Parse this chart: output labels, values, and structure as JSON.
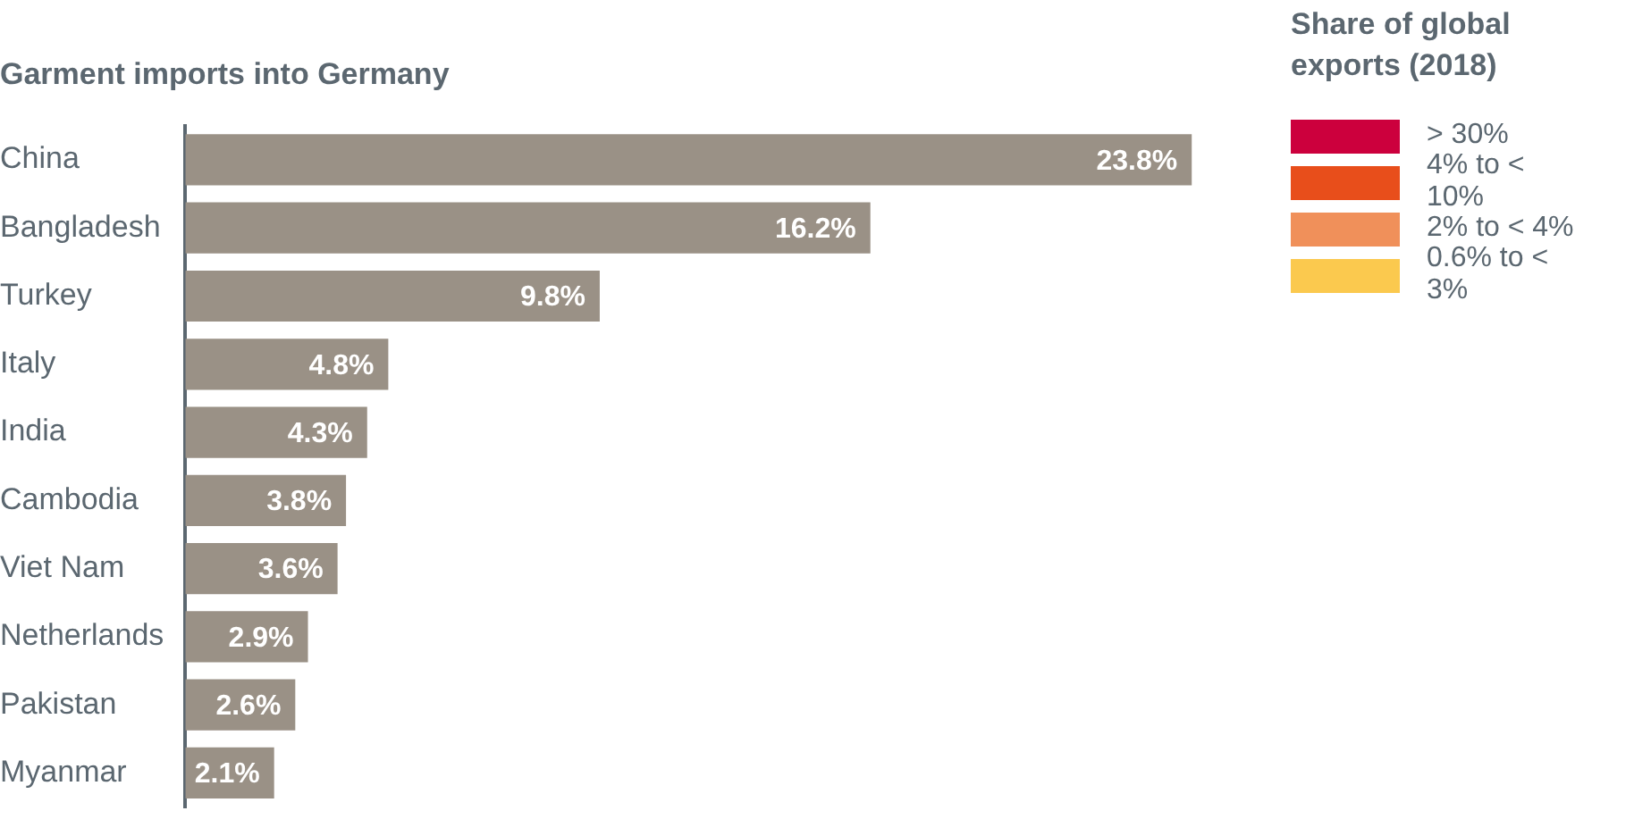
{
  "chart_data": {
    "type": "bar",
    "orientation": "horizontal",
    "title": "Garment imports into Germany",
    "categories": [
      "China",
      "Bangladesh",
      "Turkey",
      "Italy",
      "India",
      "Cambodia",
      "Viet Nam",
      "Netherlands",
      "Pakistan",
      "Myanmar"
    ],
    "series": [
      {
        "color": "#9a9186",
        "values": [
          23.8,
          16.2,
          9.8,
          4.8,
          4.3,
          3.8,
          3.6,
          2.9,
          2.6,
          2.1
        ],
        "value_labels": [
          "23.8%",
          "16.2%",
          "9.8%",
          "4.8%",
          "4.3%",
          "3.8%",
          "3.6%",
          "2.9%",
          "2.6%",
          "2.1%"
        ]
      },
      {
        "name": "> 30%",
        "color": "#cc003d",
        "values": [
          null,
          null,
          null,
          null,
          null,
          null,
          null,
          null,
          null,
          null
        ]
      },
      {
        "name": "4% to < 10%",
        "color": "#e84e1b",
        "values": [
          null,
          null,
          null,
          null,
          null,
          null,
          null,
          null,
          null,
          null
        ]
      },
      {
        "name": "2% to < 4%",
        "color": "#f0905a",
        "values": [
          null,
          null,
          null,
          null,
          null,
          null,
          null,
          null,
          null,
          null
        ]
      },
      {
        "name": "0.6% to < 3%",
        "color": "#fbc94e",
        "values": [
          null,
          null,
          null,
          null,
          null,
          null,
          null,
          null,
          null,
          null
        ]
      }
    ],
    "legend_title": "Share of global exports (2018)",
    "legend": "top right",
    "tick_labels": "y"
  }
}
